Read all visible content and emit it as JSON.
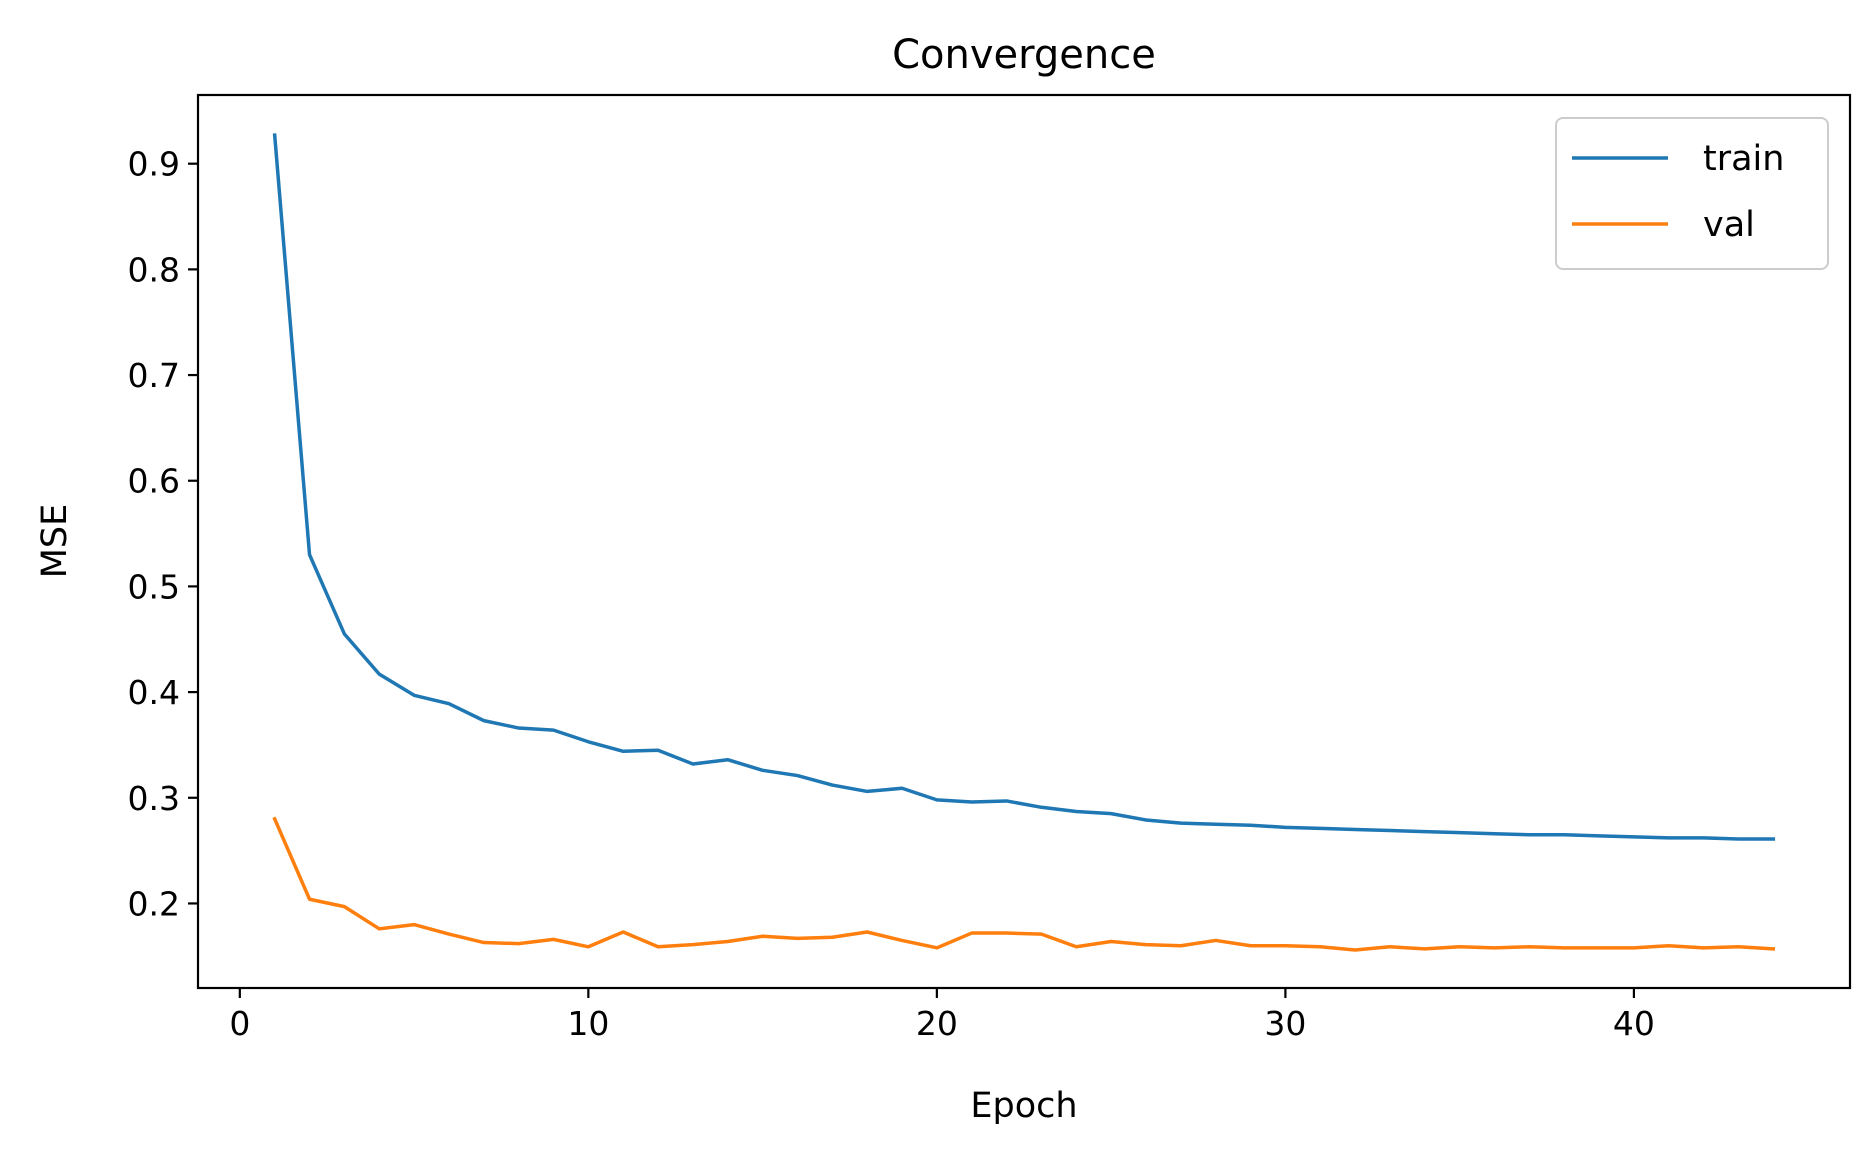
{
  "chart_data": {
    "type": "line",
    "title": "Convergence",
    "xlabel": "Epoch",
    "ylabel": "MSE",
    "xlim": [
      -1.2,
      46.2
    ],
    "ylim": [
      0.12,
      0.965
    ],
    "xticks": [
      0,
      10,
      20,
      30,
      40
    ],
    "yticks": [
      0.2,
      0.3,
      0.4,
      0.5,
      0.6,
      0.7,
      0.8,
      0.9
    ],
    "grid": false,
    "legend_position": "top-right",
    "x": [
      1,
      2,
      3,
      4,
      5,
      6,
      7,
      8,
      9,
      10,
      11,
      12,
      13,
      14,
      15,
      16,
      17,
      18,
      19,
      20,
      21,
      22,
      23,
      24,
      25,
      26,
      27,
      28,
      29,
      30,
      31,
      32,
      33,
      34,
      35,
      36,
      37,
      38,
      39,
      40,
      41,
      42,
      43,
      44
    ],
    "series": [
      {
        "name": "train",
        "color": "#1f77b4",
        "values": [
          0.927,
          0.53,
          0.455,
          0.417,
          0.397,
          0.389,
          0.373,
          0.366,
          0.364,
          0.353,
          0.344,
          0.345,
          0.332,
          0.336,
          0.326,
          0.321,
          0.312,
          0.306,
          0.309,
          0.298,
          0.296,
          0.297,
          0.291,
          0.287,
          0.285,
          0.279,
          0.276,
          0.275,
          0.274,
          0.272,
          0.271,
          0.27,
          0.269,
          0.268,
          0.267,
          0.266,
          0.265,
          0.265,
          0.264,
          0.263,
          0.262,
          0.262,
          0.261,
          0.261
        ]
      },
      {
        "name": "val",
        "color": "#ff7f0e",
        "values": [
          0.28,
          0.204,
          0.197,
          0.176,
          0.18,
          0.171,
          0.163,
          0.162,
          0.166,
          0.159,
          0.173,
          0.159,
          0.161,
          0.164,
          0.169,
          0.167,
          0.168,
          0.173,
          0.165,
          0.158,
          0.172,
          0.172,
          0.171,
          0.159,
          0.164,
          0.161,
          0.16,
          0.165,
          0.16,
          0.16,
          0.159,
          0.156,
          0.159,
          0.157,
          0.159,
          0.158,
          0.159,
          0.158,
          0.158,
          0.158,
          0.16,
          0.158,
          0.159,
          0.157
        ]
      }
    ]
  }
}
